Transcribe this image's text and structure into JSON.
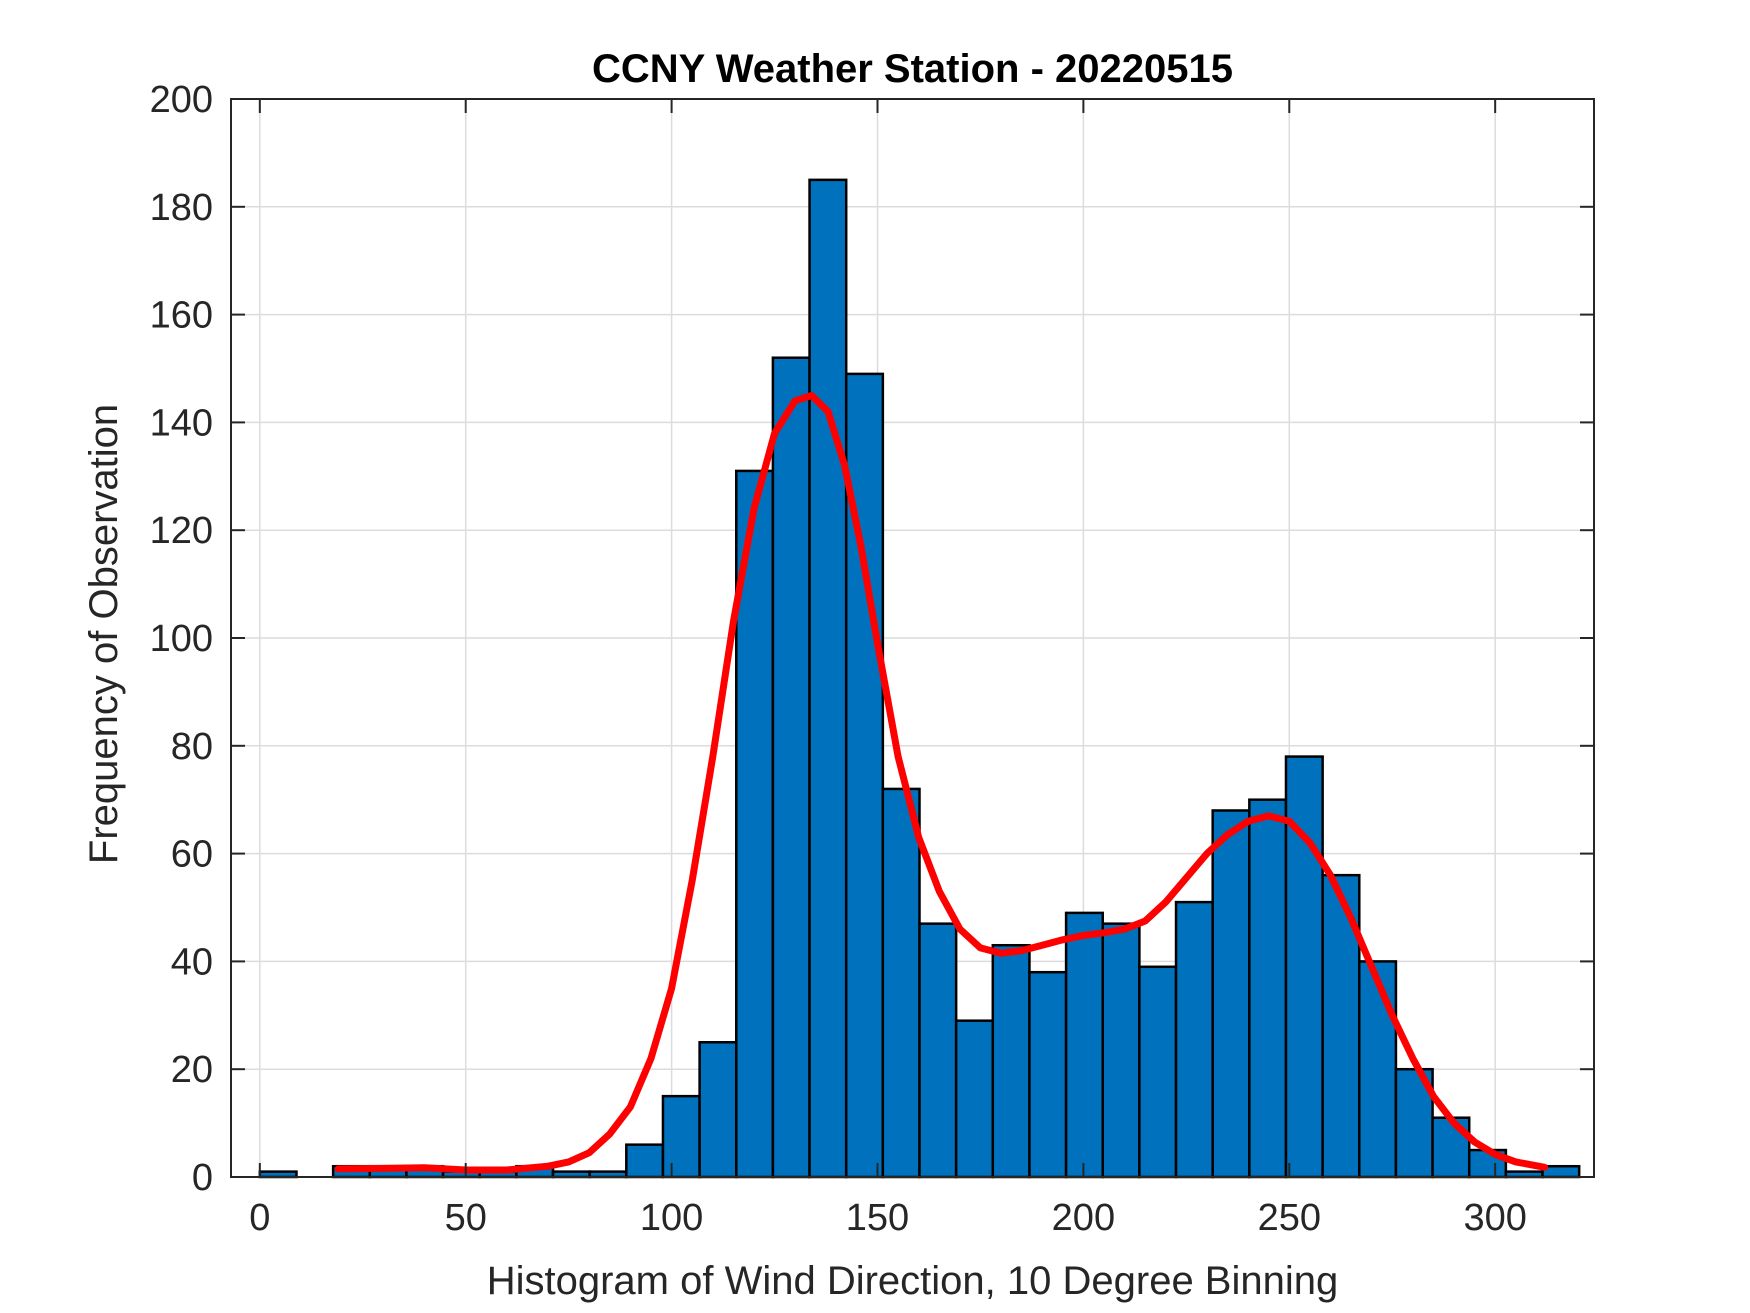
{
  "chart_data": {
    "type": "bar",
    "title": "CCNY Weather Station - 20220515",
    "xlabel": "Histogram of Wind Direction, 10 Degree Binning",
    "ylabel": "Frequency of Observation",
    "xlim": [
      -7,
      324
    ],
    "ylim": [
      0,
      200
    ],
    "xticks": [
      0,
      50,
      100,
      150,
      200,
      250,
      300
    ],
    "yticks": [
      0,
      20,
      40,
      60,
      80,
      100,
      120,
      140,
      160,
      180,
      200
    ],
    "grid": true,
    "bin_width": 8.9,
    "bins": [
      {
        "start": 0,
        "value": 1
      },
      {
        "start": 8.9,
        "value": 0
      },
      {
        "start": 17.8,
        "value": 2
      },
      {
        "start": 26.7,
        "value": 2
      },
      {
        "start": 35.6,
        "value": 2
      },
      {
        "start": 44.5,
        "value": 1
      },
      {
        "start": 53.4,
        "value": 1
      },
      {
        "start": 62.3,
        "value": 2
      },
      {
        "start": 71.2,
        "value": 1
      },
      {
        "start": 80.1,
        "value": 1
      },
      {
        "start": 89.0,
        "value": 6
      },
      {
        "start": 97.9,
        "value": 15
      },
      {
        "start": 106.8,
        "value": 25
      },
      {
        "start": 115.7,
        "value": 131
      },
      {
        "start": 124.6,
        "value": 152
      },
      {
        "start": 133.5,
        "value": 185
      },
      {
        "start": 142.4,
        "value": 149
      },
      {
        "start": 151.3,
        "value": 72
      },
      {
        "start": 160.2,
        "value": 47
      },
      {
        "start": 169.1,
        "value": 29
      },
      {
        "start": 178.0,
        "value": 43
      },
      {
        "start": 186.9,
        "value": 38
      },
      {
        "start": 195.8,
        "value": 49
      },
      {
        "start": 204.7,
        "value": 47
      },
      {
        "start": 213.6,
        "value": 39
      },
      {
        "start": 222.5,
        "value": 51
      },
      {
        "start": 231.4,
        "value": 68
      },
      {
        "start": 240.3,
        "value": 70
      },
      {
        "start": 249.2,
        "value": 78
      },
      {
        "start": 258.1,
        "value": 56
      },
      {
        "start": 267.0,
        "value": 40
      },
      {
        "start": 275.9,
        "value": 20
      },
      {
        "start": 284.8,
        "value": 11
      },
      {
        "start": 293.7,
        "value": 5
      },
      {
        "start": 302.6,
        "value": 1
      },
      {
        "start": 311.5,
        "value": 2
      }
    ],
    "fit_curve": {
      "name": "fit",
      "color": "#ff0000",
      "points": [
        [
          19,
          1.5
        ],
        [
          30,
          1.6
        ],
        [
          40,
          1.7
        ],
        [
          50,
          1.3
        ],
        [
          60,
          1.3
        ],
        [
          70,
          2.0
        ],
        [
          75,
          2.8
        ],
        [
          80,
          4.5
        ],
        [
          85,
          8
        ],
        [
          90,
          13
        ],
        [
          95,
          22
        ],
        [
          100,
          35
        ],
        [
          105,
          55
        ],
        [
          110,
          78
        ],
        [
          115,
          103
        ],
        [
          120,
          124
        ],
        [
          125,
          138
        ],
        [
          130,
          144
        ],
        [
          134,
          145
        ],
        [
          138,
          142
        ],
        [
          142,
          132
        ],
        [
          146,
          117
        ],
        [
          150,
          99
        ],
        [
          155,
          78
        ],
        [
          160,
          63
        ],
        [
          165,
          53
        ],
        [
          170,
          46
        ],
        [
          175,
          42.5
        ],
        [
          180,
          41.5
        ],
        [
          185,
          42
        ],
        [
          190,
          43
        ],
        [
          195,
          44
        ],
        [
          200,
          44.8
        ],
        [
          205,
          45.3
        ],
        [
          210,
          46
        ],
        [
          215,
          47.5
        ],
        [
          220,
          51
        ],
        [
          225,
          55.5
        ],
        [
          230,
          60
        ],
        [
          235,
          63.5
        ],
        [
          240,
          66
        ],
        [
          245,
          67
        ],
        [
          250,
          66
        ],
        [
          255,
          62
        ],
        [
          260,
          56
        ],
        [
          265,
          48
        ],
        [
          270,
          39
        ],
        [
          275,
          30
        ],
        [
          280,
          22
        ],
        [
          285,
          15
        ],
        [
          290,
          10
        ],
        [
          295,
          6.5
        ],
        [
          300,
          4.2
        ],
        [
          305,
          2.8
        ],
        [
          312,
          1.8
        ]
      ]
    },
    "colors": {
      "bar_fill": "#0072bd",
      "bar_edge": "#000000",
      "grid": "#dcdcdc",
      "axis": "#262626",
      "curve": "#ff0000"
    }
  }
}
